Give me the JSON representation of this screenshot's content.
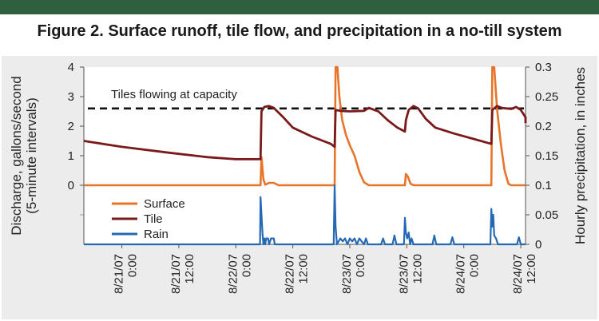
{
  "header": {
    "title": "Figure 2. Surface runoff, tile flow, and precipitation in a no-till system"
  },
  "colors": {
    "header_bar": "#2e5f3f",
    "panel": "#ececec",
    "surface": "#e8742a",
    "tile": "#7a1a1a",
    "rain": "#2469b3",
    "capacity_line": "#111111"
  },
  "chart_data": {
    "type": "line",
    "title": "Figure 2. Surface runoff, tile flow, and precipitation in a no-till system",
    "ylabel_left": [
      "Discharge, gallons/second",
      "(5-minute intervals)"
    ],
    "ylabel_right": "Hourly precipitation, in inches",
    "y_left_ticks": [
      "4",
      "3",
      "2",
      "1",
      "0"
    ],
    "y_right_ticks": [
      "0.3",
      "0.25",
      "0.2",
      "0.15",
      "0.1",
      "0.05",
      "0"
    ],
    "x_ticks": [
      {
        "date": "8/21/07",
        "time": "0:00",
        "t": 0
      },
      {
        "date": "8/21/07",
        "time": "12:00",
        "t": 12
      },
      {
        "date": "8/22/07",
        "time": "0:00",
        "t": 24
      },
      {
        "date": "8/22/07",
        "time": "12:00",
        "t": 36
      },
      {
        "date": "8/23/07",
        "time": "0:00",
        "t": 48
      },
      {
        "date": "8/23/07",
        "time": "12:00",
        "t": 60
      },
      {
        "date": "8/24/07",
        "time": "0:00",
        "t": 72
      },
      {
        "date": "8/24/07",
        "time": "12:00",
        "t": 84
      }
    ],
    "x_range_hours": [
      -8,
      85
    ],
    "y_left_range": [
      -2,
      4
    ],
    "y_right_range": [
      0,
      0.3
    ],
    "annotation": {
      "text": "Tiles flowing at capacity",
      "y": 2.6
    },
    "legend": [
      "Surface",
      "Tile",
      "Rain"
    ],
    "series": [
      {
        "name": "Surface",
        "axis": "left",
        "points": [
          [
            -8,
            0
          ],
          [
            29.2,
            0
          ],
          [
            29.4,
            0.95
          ],
          [
            29.8,
            0.2
          ],
          [
            30.2,
            0.02
          ],
          [
            31,
            0.08
          ],
          [
            32,
            0.08
          ],
          [
            33,
            0
          ],
          [
            44.8,
            0
          ],
          [
            45,
            4
          ],
          [
            45.4,
            4
          ],
          [
            45.8,
            3
          ],
          [
            46.4,
            2.2
          ],
          [
            47.2,
            1.7
          ],
          [
            48,
            1.35
          ],
          [
            49,
            1
          ],
          [
            50,
            0.45
          ],
          [
            51,
            0.1
          ],
          [
            52,
            0
          ],
          [
            59.6,
            0
          ],
          [
            59.8,
            0.38
          ],
          [
            60.2,
            0.3
          ],
          [
            60.8,
            0.05
          ],
          [
            61.5,
            0
          ],
          [
            77.8,
            0
          ],
          [
            78,
            4
          ],
          [
            78.4,
            4
          ],
          [
            79,
            2.6
          ],
          [
            79.8,
            1.4
          ],
          [
            80.6,
            0.5
          ],
          [
            81.4,
            0.05
          ],
          [
            82,
            0
          ],
          [
            85,
            0
          ]
        ]
      },
      {
        "name": "Tile",
        "axis": "left",
        "points": [
          [
            -8,
            1.5
          ],
          [
            0,
            1.3
          ],
          [
            10,
            1.1
          ],
          [
            18,
            0.95
          ],
          [
            24,
            0.88
          ],
          [
            29.2,
            0.88
          ],
          [
            29.4,
            2.5
          ],
          [
            30,
            2.65
          ],
          [
            31,
            2.68
          ],
          [
            32,
            2.62
          ],
          [
            34,
            2.3
          ],
          [
            36,
            1.95
          ],
          [
            40,
            1.65
          ],
          [
            44,
            1.4
          ],
          [
            44.8,
            1.3
          ],
          [
            45,
            2.55
          ],
          [
            46,
            2.52
          ],
          [
            48,
            2.5
          ],
          [
            51,
            2.52
          ],
          [
            52,
            2.62
          ],
          [
            54,
            2.5
          ],
          [
            56,
            2.2
          ],
          [
            58,
            1.95
          ],
          [
            59.6,
            1.82
          ],
          [
            59.8,
            2.2
          ],
          [
            60.4,
            2.55
          ],
          [
            61.4,
            2.68
          ],
          [
            62.4,
            2.6
          ],
          [
            64,
            2.25
          ],
          [
            66,
            1.95
          ],
          [
            70,
            1.75
          ],
          [
            74,
            1.57
          ],
          [
            77.8,
            1.4
          ],
          [
            78,
            2.55
          ],
          [
            79,
            2.68
          ],
          [
            80,
            2.62
          ],
          [
            81,
            2.6
          ],
          [
            82,
            2.58
          ],
          [
            83,
            2.65
          ],
          [
            84,
            2.55
          ],
          [
            86,
            2.3
          ],
          [
            88,
            2.1
          ],
          [
            85,
            2.1
          ]
        ]
      },
      {
        "name": "Rain",
        "axis": "right",
        "points": [
          [
            -8,
            0
          ],
          [
            29.1,
            0
          ],
          [
            29.2,
            0.08
          ],
          [
            29.4,
            0.05
          ],
          [
            29.6,
            0.02
          ],
          [
            29.8,
            0
          ],
          [
            30,
            0.01
          ],
          [
            30.2,
            0
          ],
          [
            30.4,
            0.01
          ],
          [
            30.8,
            0.01
          ],
          [
            31,
            0
          ],
          [
            31.4,
            0.01
          ],
          [
            32,
            0.01
          ],
          [
            32.2,
            0
          ],
          [
            44.6,
            0
          ],
          [
            44.8,
            0.1
          ],
          [
            45,
            0.03
          ],
          [
            45.3,
            0
          ],
          [
            46,
            0.01
          ],
          [
            46.5,
            0.005
          ],
          [
            47,
            0.01
          ],
          [
            47.5,
            0
          ],
          [
            48,
            0.01
          ],
          [
            48.5,
            0.005
          ],
          [
            49,
            0.01
          ],
          [
            49.5,
            0
          ],
          [
            50,
            0.01
          ],
          [
            51,
            0
          ],
          [
            51.4,
            0.01
          ],
          [
            51.8,
            0
          ],
          [
            54.6,
            0
          ],
          [
            55,
            0.01
          ],
          [
            55.4,
            0
          ],
          [
            57,
            0
          ],
          [
            57.4,
            0.015
          ],
          [
            57.8,
            0
          ],
          [
            59.4,
            0
          ],
          [
            59.6,
            0.045
          ],
          [
            59.8,
            0.02
          ],
          [
            60.1,
            0.01
          ],
          [
            60.4,
            0.02
          ],
          [
            60.7,
            0
          ],
          [
            61,
            0.01
          ],
          [
            61.4,
            0
          ],
          [
            65.4,
            0
          ],
          [
            65.8,
            0.015
          ],
          [
            66.2,
            0
          ],
          [
            69.2,
            0
          ],
          [
            69.6,
            0.012
          ],
          [
            70,
            0
          ],
          [
            77.6,
            0
          ],
          [
            77.8,
            0.06
          ],
          [
            78,
            0.03
          ],
          [
            78.2,
            0.05
          ],
          [
            78.4,
            0.015
          ],
          [
            78.8,
            0.01
          ],
          [
            79.2,
            0
          ],
          [
            83.2,
            0
          ],
          [
            83.6,
            0.012
          ],
          [
            84,
            0
          ],
          [
            85,
            0
          ]
        ]
      }
    ]
  }
}
